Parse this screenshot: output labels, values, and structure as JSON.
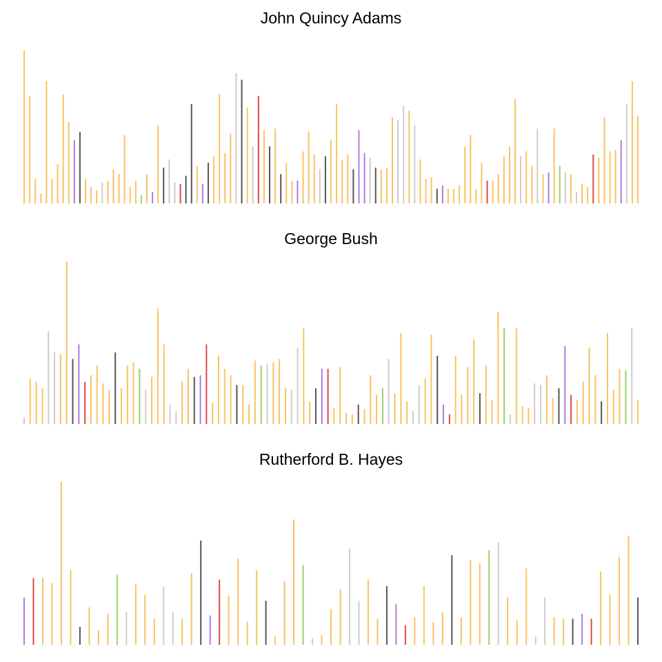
{
  "colors": {
    "orange": "#F9C35F",
    "grey": "#CCCCCC",
    "dark": "#555555",
    "purple": "#B07AE0",
    "red": "#E04848",
    "green": "#99D16B",
    "blue": "#86A9C9"
  },
  "chart_data": [
    {
      "type": "bar",
      "title": "John Quincy Adams",
      "xlabel": "",
      "ylabel": "",
      "grid": false,
      "legend": "none",
      "ymax": 100,
      "values": [
        94,
        66,
        15,
        6,
        75,
        15,
        24,
        67,
        50,
        39,
        44,
        15,
        10,
        8,
        13,
        14,
        21,
        18,
        42,
        10,
        14,
        5,
        18,
        7,
        48,
        22,
        27,
        13,
        12,
        17,
        61,
        23,
        12,
        25,
        29,
        67,
        31,
        43,
        80,
        76,
        59,
        35,
        66,
        45,
        35,
        46,
        18,
        25,
        14,
        14,
        32,
        44,
        30,
        21,
        29,
        39,
        61,
        27,
        30,
        21,
        45,
        31,
        28,
        22,
        21,
        22,
        53,
        51,
        60,
        57,
        48,
        27,
        15,
        16,
        9,
        11,
        9,
        9,
        11,
        35,
        42,
        9,
        25,
        14,
        14,
        18,
        29,
        35,
        64,
        29,
        32,
        23,
        46,
        18,
        19,
        46,
        23,
        19,
        18,
        7,
        12,
        10,
        30,
        28,
        53,
        32,
        33,
        39,
        61,
        75,
        54
      ],
      "color_keys": [
        "orange",
        "orange",
        "orange",
        "orange",
        "orange",
        "orange",
        "orange",
        "orange",
        "orange",
        "purple",
        "dark",
        "orange",
        "orange",
        "orange",
        "grey",
        "orange",
        "orange",
        "orange",
        "orange",
        "orange",
        "orange",
        "green",
        "orange",
        "purple",
        "orange",
        "dark",
        "grey",
        "grey",
        "red",
        "dark",
        "dark",
        "orange",
        "purple",
        "dark",
        "orange",
        "orange",
        "orange",
        "orange",
        "grey",
        "dark",
        "orange",
        "grey",
        "red",
        "orange",
        "dark",
        "orange",
        "dark",
        "orange",
        "orange",
        "purple",
        "orange",
        "orange",
        "orange",
        "grey",
        "dark",
        "orange",
        "orange",
        "orange",
        "orange",
        "dark",
        "purple",
        "purple",
        "grey",
        "dark",
        "orange",
        "orange",
        "orange",
        "grey",
        "grey",
        "orange",
        "grey",
        "orange",
        "orange",
        "orange",
        "dark",
        "purple",
        "orange",
        "orange",
        "orange",
        "orange",
        "orange",
        "orange",
        "orange",
        "red",
        "orange",
        "orange",
        "orange",
        "orange",
        "orange",
        "grey",
        "orange",
        "orange",
        "grey",
        "orange",
        "purple",
        "orange",
        "green",
        "grey",
        "orange",
        "grey",
        "orange",
        "orange",
        "red",
        "orange",
        "orange",
        "orange",
        "orange",
        "purple",
        "grey",
        "orange",
        "orange"
      ]
    },
    {
      "type": "bar",
      "title": "George Bush",
      "xlabel": "",
      "ylabel": "",
      "grid": false,
      "legend": "none",
      "ymax": 100,
      "values": [
        4,
        28,
        26,
        22,
        57,
        44,
        43,
        100,
        40,
        49,
        26,
        30,
        36,
        25,
        21,
        44,
        22,
        36,
        38,
        34,
        21,
        29,
        71,
        49,
        12,
        8,
        26,
        34,
        29,
        30,
        49,
        13,
        42,
        34,
        30,
        24,
        24,
        12,
        39,
        36,
        37,
        38,
        40,
        22,
        21,
        47,
        59,
        14,
        22,
        34,
        34,
        10,
        35,
        7,
        6,
        12,
        9,
        30,
        18,
        22,
        40,
        19,
        56,
        14,
        8,
        24,
        28,
        55,
        42,
        12,
        6,
        42,
        18,
        35,
        52,
        19,
        36,
        15,
        69,
        59,
        6,
        59,
        11,
        10,
        25,
        24,
        30,
        16,
        22,
        48,
        18,
        15,
        26,
        47,
        30,
        14,
        56,
        21,
        34,
        33,
        59,
        15
      ]
    },
    {
      "type": "bar",
      "title": "Rutherford B. Hayes",
      "xlabel": "",
      "ylabel": "",
      "grid": false,
      "legend": "none",
      "ymax": 100,
      "values": [
        29,
        41,
        41,
        38,
        100,
        46,
        11,
        23,
        9,
        19,
        43,
        20,
        37,
        31,
        16,
        36,
        20,
        16,
        44,
        64,
        18,
        40,
        30,
        53,
        14,
        46,
        27,
        5,
        39,
        77,
        49,
        4,
        6,
        22,
        34,
        59,
        27,
        40,
        16,
        36,
        25,
        12,
        17,
        36,
        14,
        20,
        55,
        17,
        52,
        50,
        58,
        63,
        29,
        15,
        47,
        5,
        29,
        17,
        16,
        16,
        19,
        16,
        45,
        31,
        54,
        67,
        29
      ]
    }
  ]
}
